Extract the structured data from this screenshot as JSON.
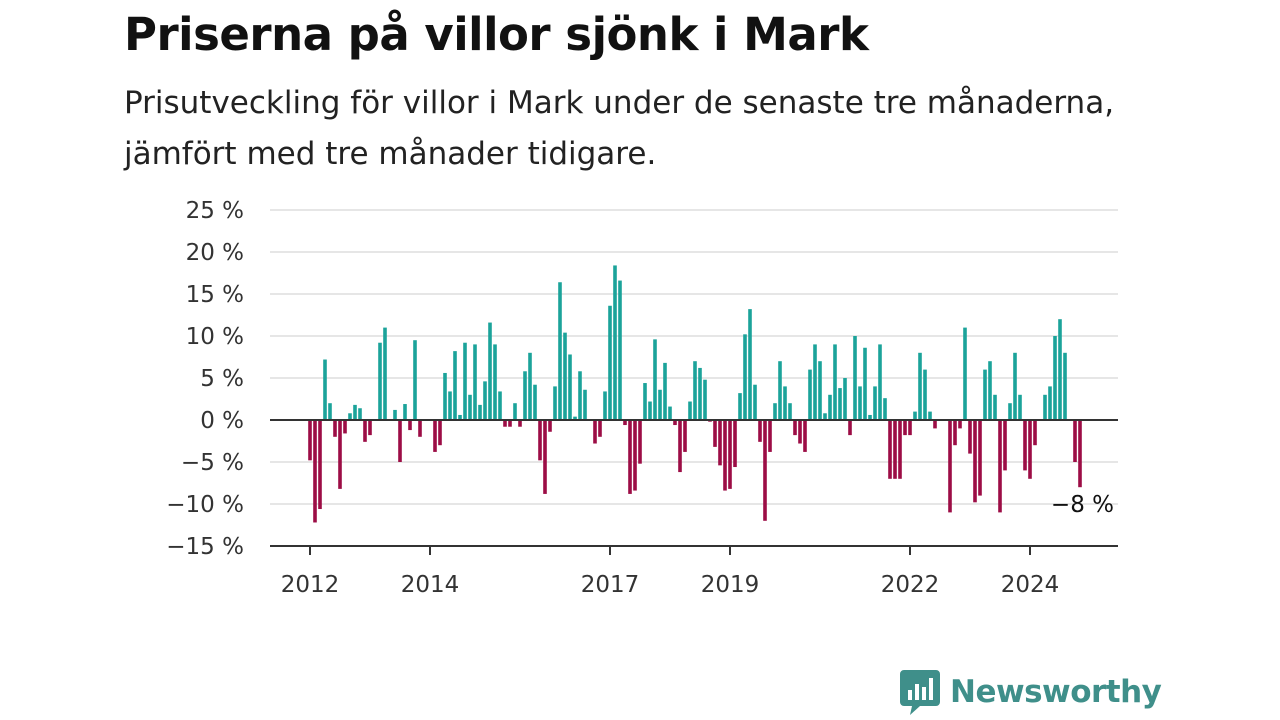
{
  "header": {
    "title": "Priserna på villor sjönk i Mark",
    "subtitle": "Prisutveckling för villor i Mark under de senaste tre månaderna, jämfört med tre månader tidigare."
  },
  "brand": {
    "name": "Newsworthy",
    "icon": "newsworthy-logo-icon",
    "color": "#3f8f8a"
  },
  "colors": {
    "positive": "#1ba39a",
    "negative": "#9c0d45",
    "grid": "#dddddd",
    "axis": "#333333"
  },
  "chart_data": {
    "type": "bar",
    "title": "Priserna på villor sjönk i Mark",
    "subtitle": "Prisutveckling för villor i Mark under de senaste tre månaderna, jämfört med tre månader tidigare.",
    "xlabel": "",
    "ylabel": "",
    "unit": "%",
    "grid": true,
    "ylim": [
      -15,
      25
    ],
    "yticks": [
      25,
      20,
      15,
      10,
      5,
      0,
      -5,
      -10,
      -15
    ],
    "ytick_labels": [
      "25 %",
      "20 %",
      "15 %",
      "10 %",
      "5 %",
      "0 %",
      "−5 %",
      "−10 %",
      "−15 %"
    ],
    "xtick_labels": [
      {
        "date": "2012-01",
        "label": "2012"
      },
      {
        "date": "2014-01",
        "label": "2014"
      },
      {
        "date": "2017-01",
        "label": "2017"
      },
      {
        "date": "2019-01",
        "label": "2019"
      },
      {
        "date": "2022-01",
        "label": "2022"
      },
      {
        "date": "2024-01",
        "label": "2024"
      }
    ],
    "last_value_label": "−8 %",
    "series": [
      {
        "values": [
          {
            "x": "2012-01",
            "y": -4.8
          },
          {
            "x": "2012-02",
            "y": -12.2
          },
          {
            "x": "2012-03",
            "y": -10.6
          },
          {
            "x": "2012-04",
            "y": 7.2
          },
          {
            "x": "2012-05",
            "y": 2.0
          },
          {
            "x": "2012-06",
            "y": -2.0
          },
          {
            "x": "2012-07",
            "y": -8.2
          },
          {
            "x": "2012-08",
            "y": -1.6
          },
          {
            "x": "2012-09",
            "y": 0.8
          },
          {
            "x": "2012-10",
            "y": 1.8
          },
          {
            "x": "2012-11",
            "y": 1.4
          },
          {
            "x": "2012-12",
            "y": -2.6
          },
          {
            "x": "2013-01",
            "y": -1.8
          },
          {
            "x": "2013-02",
            "y": 0.0
          },
          {
            "x": "2013-03",
            "y": 9.2
          },
          {
            "x": "2013-04",
            "y": 11.0
          },
          {
            "x": "2013-05",
            "y": 0.0
          },
          {
            "x": "2013-06",
            "y": 1.2
          },
          {
            "x": "2013-07",
            "y": -5.0
          },
          {
            "x": "2013-08",
            "y": 1.9
          },
          {
            "x": "2013-09",
            "y": -1.2
          },
          {
            "x": "2013-10",
            "y": 9.5
          },
          {
            "x": "2013-11",
            "y": -2.0
          },
          {
            "x": "2013-12",
            "y": 0.0
          },
          {
            "x": "2014-01",
            "y": 0.0
          },
          {
            "x": "2014-02",
            "y": -3.8
          },
          {
            "x": "2014-03",
            "y": -3.0
          },
          {
            "x": "2014-04",
            "y": 5.6
          },
          {
            "x": "2014-05",
            "y": 3.4
          },
          {
            "x": "2014-06",
            "y": 8.2
          },
          {
            "x": "2014-07",
            "y": 0.6
          },
          {
            "x": "2014-08",
            "y": 9.2
          },
          {
            "x": "2014-09",
            "y": 3.0
          },
          {
            "x": "2014-10",
            "y": 9.0
          },
          {
            "x": "2014-11",
            "y": 1.8
          },
          {
            "x": "2014-12",
            "y": 4.6
          },
          {
            "x": "2015-01",
            "y": 11.6
          },
          {
            "x": "2015-02",
            "y": 9.0
          },
          {
            "x": "2015-03",
            "y": 3.4
          },
          {
            "x": "2015-04",
            "y": -0.8
          },
          {
            "x": "2015-05",
            "y": -0.8
          },
          {
            "x": "2015-06",
            "y": 2.0
          },
          {
            "x": "2015-07",
            "y": -0.8
          },
          {
            "x": "2015-08",
            "y": 5.8
          },
          {
            "x": "2015-09",
            "y": 8.0
          },
          {
            "x": "2015-10",
            "y": 4.2
          },
          {
            "x": "2015-11",
            "y": -4.8
          },
          {
            "x": "2015-12",
            "y": -8.8
          },
          {
            "x": "2016-01",
            "y": -1.4
          },
          {
            "x": "2016-02",
            "y": 4.0
          },
          {
            "x": "2016-03",
            "y": 16.4
          },
          {
            "x": "2016-04",
            "y": 10.4
          },
          {
            "x": "2016-05",
            "y": 7.8
          },
          {
            "x": "2016-06",
            "y": 0.4
          },
          {
            "x": "2016-07",
            "y": 5.8
          },
          {
            "x": "2016-08",
            "y": 3.6
          },
          {
            "x": "2016-09",
            "y": 0.0
          },
          {
            "x": "2016-10",
            "y": -2.8
          },
          {
            "x": "2016-11",
            "y": -2.0
          },
          {
            "x": "2016-12",
            "y": 3.4
          },
          {
            "x": "2017-01",
            "y": 13.6
          },
          {
            "x": "2017-02",
            "y": 18.4
          },
          {
            "x": "2017-03",
            "y": 16.6
          },
          {
            "x": "2017-04",
            "y": -0.6
          },
          {
            "x": "2017-05",
            "y": -8.8
          },
          {
            "x": "2017-06",
            "y": -8.4
          },
          {
            "x": "2017-07",
            "y": -5.2
          },
          {
            "x": "2017-08",
            "y": 4.4
          },
          {
            "x": "2017-09",
            "y": 2.2
          },
          {
            "x": "2017-10",
            "y": 9.6
          },
          {
            "x": "2017-11",
            "y": 3.6
          },
          {
            "x": "2017-12",
            "y": 6.8
          },
          {
            "x": "2018-01",
            "y": 1.6
          },
          {
            "x": "2018-02",
            "y": -0.6
          },
          {
            "x": "2018-03",
            "y": -6.2
          },
          {
            "x": "2018-04",
            "y": -3.8
          },
          {
            "x": "2018-05",
            "y": 2.2
          },
          {
            "x": "2018-06",
            "y": 7.0
          },
          {
            "x": "2018-07",
            "y": 6.2
          },
          {
            "x": "2018-08",
            "y": 4.8
          },
          {
            "x": "2018-09",
            "y": -0.2
          },
          {
            "x": "2018-10",
            "y": -3.2
          },
          {
            "x": "2018-11",
            "y": -5.4
          },
          {
            "x": "2018-12",
            "y": -8.4
          },
          {
            "x": "2019-01",
            "y": -8.2
          },
          {
            "x": "2019-02",
            "y": -5.6
          },
          {
            "x": "2019-03",
            "y": 3.2
          },
          {
            "x": "2019-04",
            "y": 10.2
          },
          {
            "x": "2019-05",
            "y": 13.2
          },
          {
            "x": "2019-06",
            "y": 4.2
          },
          {
            "x": "2019-07",
            "y": -2.6
          },
          {
            "x": "2019-08",
            "y": -12.0
          },
          {
            "x": "2019-09",
            "y": -3.8
          },
          {
            "x": "2019-10",
            "y": 2.0
          },
          {
            "x": "2019-11",
            "y": 7.0
          },
          {
            "x": "2019-12",
            "y": 4.0
          },
          {
            "x": "2020-01",
            "y": 2.0
          },
          {
            "x": "2020-02",
            "y": -1.8
          },
          {
            "x": "2020-03",
            "y": -2.8
          },
          {
            "x": "2020-04",
            "y": -3.8
          },
          {
            "x": "2020-05",
            "y": 6.0
          },
          {
            "x": "2020-06",
            "y": 9.0
          },
          {
            "x": "2020-07",
            "y": 7.0
          },
          {
            "x": "2020-08",
            "y": 0.8
          },
          {
            "x": "2020-09",
            "y": 3.0
          },
          {
            "x": "2020-10",
            "y": 9.0
          },
          {
            "x": "2020-11",
            "y": 3.8
          },
          {
            "x": "2020-12",
            "y": 5.0
          },
          {
            "x": "2021-01",
            "y": -1.8
          },
          {
            "x": "2021-02",
            "y": 10.0
          },
          {
            "x": "2021-03",
            "y": 4.0
          },
          {
            "x": "2021-04",
            "y": 8.6
          },
          {
            "x": "2021-05",
            "y": 0.6
          },
          {
            "x": "2021-06",
            "y": 4.0
          },
          {
            "x": "2021-07",
            "y": 9.0
          },
          {
            "x": "2021-08",
            "y": 2.6
          },
          {
            "x": "2021-09",
            "y": -7.0
          },
          {
            "x": "2021-10",
            "y": -7.0
          },
          {
            "x": "2021-11",
            "y": -7.0
          },
          {
            "x": "2021-12",
            "y": -1.8
          },
          {
            "x": "2022-01",
            "y": -1.8
          },
          {
            "x": "2022-02",
            "y": 1.0
          },
          {
            "x": "2022-03",
            "y": 8.0
          },
          {
            "x": "2022-04",
            "y": 6.0
          },
          {
            "x": "2022-05",
            "y": 1.0
          },
          {
            "x": "2022-06",
            "y": -1.0
          },
          {
            "x": "2022-07",
            "y": 0.0
          },
          {
            "x": "2022-08",
            "y": 0.0
          },
          {
            "x": "2022-09",
            "y": -11.0
          },
          {
            "x": "2022-10",
            "y": -3.0
          },
          {
            "x": "2022-11",
            "y": -1.0
          },
          {
            "x": "2022-12",
            "y": 11.0
          },
          {
            "x": "2023-01",
            "y": -4.0
          },
          {
            "x": "2023-02",
            "y": -9.8
          },
          {
            "x": "2023-03",
            "y": -9.0
          },
          {
            "x": "2023-04",
            "y": 6.0
          },
          {
            "x": "2023-05",
            "y": 7.0
          },
          {
            "x": "2023-06",
            "y": 3.0
          },
          {
            "x": "2023-07",
            "y": -11.0
          },
          {
            "x": "2023-08",
            "y": -6.0
          },
          {
            "x": "2023-09",
            "y": 2.0
          },
          {
            "x": "2023-10",
            "y": 8.0
          },
          {
            "x": "2023-11",
            "y": 3.0
          },
          {
            "x": "2023-12",
            "y": -6.0
          },
          {
            "x": "2024-01",
            "y": -7.0
          },
          {
            "x": "2024-02",
            "y": -3.0
          },
          {
            "x": "2024-03",
            "y": 0.0
          },
          {
            "x": "2024-04",
            "y": 3.0
          },
          {
            "x": "2024-05",
            "y": 4.0
          },
          {
            "x": "2024-06",
            "y": 10.0
          },
          {
            "x": "2024-07",
            "y": 12.0
          },
          {
            "x": "2024-08",
            "y": 8.0
          },
          {
            "x": "2024-09",
            "y": 0.0
          },
          {
            "x": "2024-10",
            "y": -5.0
          },
          {
            "x": "2024-11",
            "y": -8.0
          }
        ]
      }
    ]
  }
}
